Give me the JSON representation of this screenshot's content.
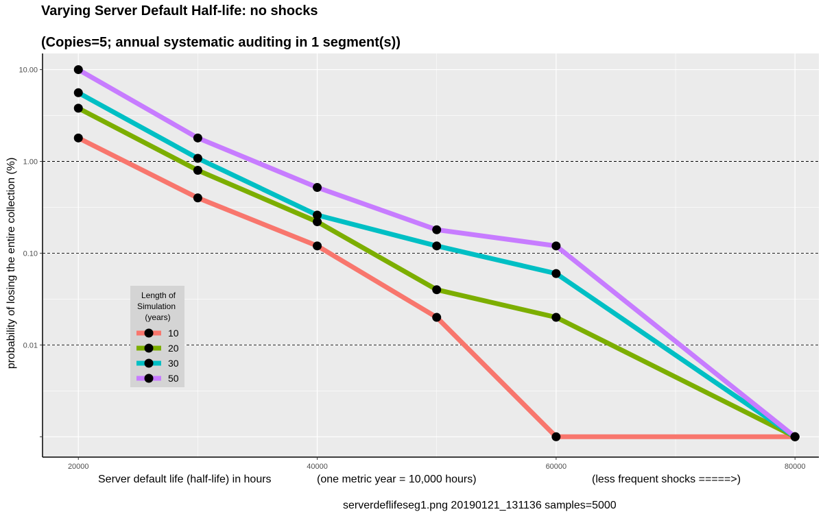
{
  "chart_data": {
    "type": "line",
    "title": "Varying Server Default Half-life: no shocks",
    "subtitle": "(Copies=5; annual systematic auditing in 1 segment(s))",
    "ylabel": "probability of losing the entire collection (%)",
    "xlabel_parts": [
      "Server default life (half-life) in hours",
      "(one metric year = 10,000 hours)",
      "(less frequent shocks =====>)"
    ],
    "caption": "serverdeflifeseg1.png   20190121_131136   samples=5000",
    "x": [
      20000,
      30000,
      40000,
      50000,
      60000,
      80000
    ],
    "x_ticks": [
      20000,
      40000,
      60000,
      80000
    ],
    "x_tick_labels": [
      "20000",
      "40000",
      "60000",
      "80000"
    ],
    "xlim": [
      17000,
      82000
    ],
    "y_scale": "log",
    "ylim": [
      0.0006,
      15
    ],
    "y_ticks": [
      0.001,
      0.01,
      0.1,
      1,
      10
    ],
    "y_tick_labels": [
      "",
      "0.01",
      "0.10",
      "1.00",
      "10.00"
    ],
    "reference_lines": [
      0.01,
      0.1,
      1
    ],
    "grid": true,
    "legend": {
      "title_lines": [
        "Length of",
        "Simulation",
        "(years)"
      ],
      "position": "bottom-left"
    },
    "series": [
      {
        "name": "10",
        "color": "#F8766D",
        "values": [
          1.8,
          0.4,
          0.12,
          0.02,
          0.001,
          0.001
        ]
      },
      {
        "name": "20",
        "color": "#7CAE00",
        "values": [
          3.8,
          0.8,
          0.22,
          0.04,
          0.02,
          0.001
        ]
      },
      {
        "name": "30",
        "color": "#00BFC4",
        "values": [
          5.6,
          1.08,
          0.26,
          0.12,
          0.06,
          0.001
        ]
      },
      {
        "name": "50",
        "color": "#C77CFF",
        "values": [
          10.0,
          1.8,
          0.52,
          0.18,
          0.12,
          0.001
        ]
      }
    ]
  }
}
